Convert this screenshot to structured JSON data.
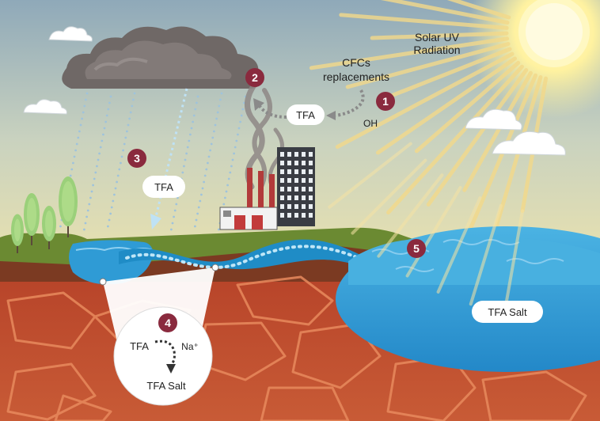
{
  "labels": {
    "sun": [
      "Solar UV",
      "Radiation"
    ],
    "cfc": [
      "CFCs",
      "replacements"
    ],
    "oh": "OH",
    "tfa_air": "TFA",
    "tfa_rain": "TFA",
    "tfa_zoom": "TFA",
    "na_ion": "Na⁺",
    "tfa_salt_zoom": "TFA Salt",
    "tfa_salt_lake": "TFA Salt"
  },
  "steps": [
    "1",
    "2",
    "3",
    "4",
    "5"
  ],
  "colors": {
    "step_badge": "#8a2a3e",
    "water": "#2f9bd5",
    "soil": "#c24b2a",
    "cloud": "#7b7472",
    "sun": "#fff4a6"
  },
  "icons": {
    "sun": "sun-icon",
    "cloud": "storm-cloud-icon",
    "factory": "factory-icon",
    "trees": "tree-icon"
  }
}
